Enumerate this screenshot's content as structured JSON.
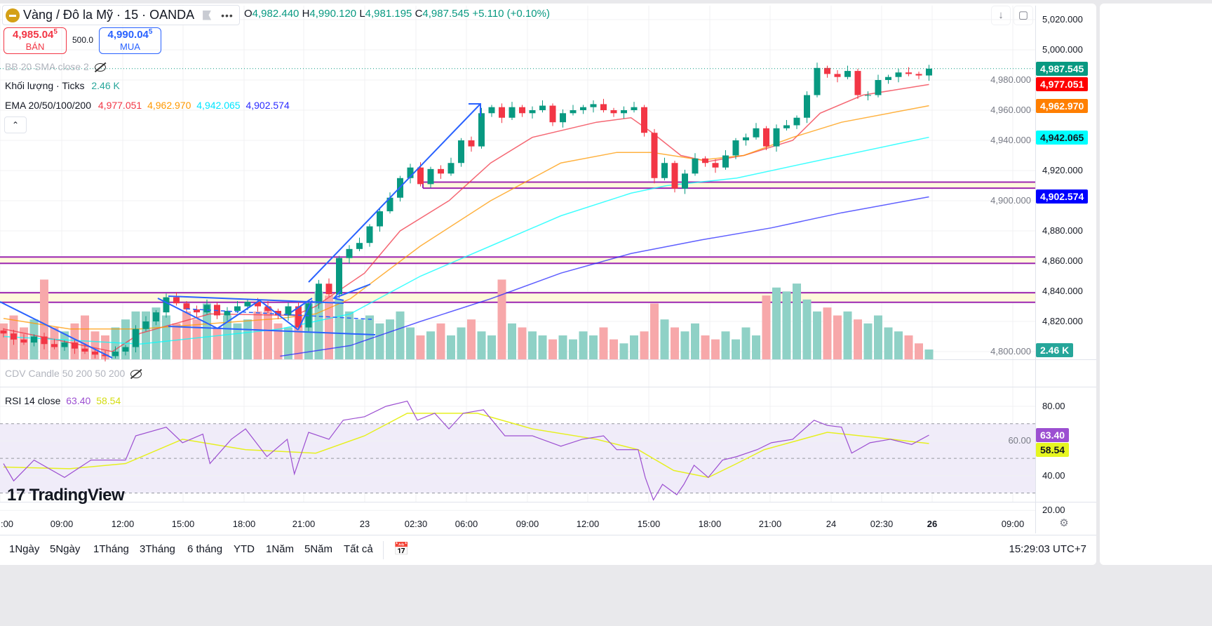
{
  "header": {
    "symbol_title": "Vàng / Đô la Mỹ · 15 · OANDA",
    "ohlc": {
      "o_label": "O",
      "o": "4,982.440",
      "h_label": "H",
      "h": "4,990.120",
      "l_label": "L",
      "l": "4,981.195",
      "c_label": "C",
      "c": "4,987.545",
      "change": "+5.110 (+0.10%)"
    },
    "sell": {
      "price": "4,985.04",
      "price_sup": "5",
      "label": "BÁN"
    },
    "buy": {
      "price": "4,990.04",
      "price_sup": "5",
      "label": "MUA"
    },
    "spread": "500.0"
  },
  "indicators": {
    "bb": "BB 20 SMA close 2",
    "volume_label": "Khối lượng · Ticks",
    "volume_value": "2.46 K",
    "ema_label": "EMA 20/50/100/200",
    "ema_values": [
      "4,977.051",
      "4,962.970",
      "4,942.065",
      "4,902.574"
    ],
    "cdv": "CDV Candle 50 200 50 200",
    "rsi_label": "RSI 14 close",
    "rsi_value": "63.40",
    "rsi_ma_value": "58.54"
  },
  "colors": {
    "up": "#089981",
    "down": "#f23645",
    "ema20": "#f23645",
    "ema50": "#ff9800",
    "ema100": "#00ffff",
    "ema200": "#2a2aff",
    "rsi": "#9c4fd1",
    "rsi_ma": "#e6f020",
    "zone_line": "#9c27b0",
    "zone_fill": "#fff9db",
    "drawing": "#2962ff"
  },
  "axis": {
    "price_ticks": [
      "5,020.000",
      "5,000.000",
      "4,980.000",
      "4,960.000",
      "4,940.000",
      "4,920.000",
      "4,900.000",
      "4,880.000",
      "4,860.000",
      "4,840.000",
      "4,820.000",
      "4,800.000"
    ],
    "rsi_ticks": [
      "80.00",
      "60.00",
      "40.00",
      "20.00"
    ],
    "time_ticks": [
      ":00",
      "09:00",
      "12:00",
      "15:00",
      "18:00",
      "21:00",
      "23",
      "02:30",
      "06:00",
      "09:00",
      "12:00",
      "15:00",
      "18:00",
      "21:00",
      "24",
      "02:30",
      "26",
      "09:00"
    ],
    "price_labels": [
      {
        "text": "4,987.545",
        "color": "#089981",
        "text_color": "#ffffff",
        "price": 4987.545
      },
      {
        "text": "4,977.051",
        "color": "#ff0000",
        "text_color": "#ffffff",
        "price": 4977.051
      },
      {
        "text": "4,962.970",
        "color": "#ff7f00",
        "text_color": "#ffffff",
        "price": 4962.97
      },
      {
        "text": "4,942.065",
        "color": "#00ffff",
        "text_color": "#131722",
        "price": 4942.065
      },
      {
        "text": "4,902.574",
        "color": "#0000ff",
        "text_color": "#ffffff",
        "price": 4902.574
      }
    ],
    "volume_label": "2.46 K",
    "rsi_labels": [
      {
        "text": "63.40",
        "color": "#9c4fd1",
        "text_color": "#ffffff",
        "value": 63.4
      },
      {
        "text": "58.54",
        "color": "#e6f620",
        "text_color": "#131722",
        "value": 58.54
      }
    ]
  },
  "chart_data": {
    "type": "candlestick",
    "symbol": "Vàng / Đô la Mỹ · 15 · OANDA",
    "ylim": [
      4795,
      5025
    ],
    "grid": true,
    "closes": [
      4812,
      4808,
      4806,
      4810,
      4805,
      4803,
      4806,
      4802,
      4800,
      4798,
      4797,
      4800,
      4803,
      4815,
      4820,
      4826,
      4836,
      4832,
      4828,
      4826,
      4831,
      4824,
      4827,
      4830,
      4833,
      4830,
      4827,
      4824,
      4830,
      4816,
      4832,
      4845,
      4838,
      4862,
      4868,
      4872,
      4883,
      4893,
      4902,
      4915,
      4922,
      4911,
      4921,
      4918,
      4925,
      4940,
      4936,
      4958,
      4962,
      4955,
      4962,
      4958,
      4960,
      4963,
      4952,
      4958,
      4960,
      4962,
      4964,
      4960,
      4958,
      4960,
      4962,
      4945,
      4915,
      4925,
      4908,
      4918,
      4928,
      4925,
      4922,
      4930,
      4940,
      4942,
      4948,
      4936,
      4948,
      4950,
      4955,
      4970,
      4988,
      4984,
      4982,
      4986,
      4970,
      4970,
      4980,
      4982,
      4985,
      4984,
      4983,
      4987.545
    ],
    "first_open": 4814,
    "volumes_k": [
      9,
      11,
      8,
      10,
      20,
      8,
      7,
      9,
      11,
      7,
      6,
      8,
      10,
      12,
      12,
      13,
      11,
      9,
      12,
      10,
      14,
      8,
      11,
      9,
      10,
      12,
      13,
      9,
      8,
      11,
      14,
      17,
      16,
      15,
      12,
      10,
      11,
      9,
      10,
      12,
      8,
      6,
      7,
      9,
      6,
      8,
      10,
      7,
      6,
      20,
      9,
      8,
      7,
      6,
      5,
      6,
      5,
      7,
      6,
      8,
      5,
      4,
      6,
      7,
      14,
      10,
      8,
      7,
      9,
      6,
      5,
      7,
      5,
      8,
      6,
      16,
      18,
      17,
      19,
      15,
      12,
      13,
      11,
      12,
      10,
      9,
      11,
      8,
      7,
      6,
      4,
      2.46
    ],
    "ema": [
      {
        "name": "EMA 20",
        "last": 4977.051,
        "knots": [
          [
            0,
            4815
          ],
          [
            6.5,
            4806
          ],
          [
            10.7,
            4800
          ],
          [
            13.4,
            4812
          ],
          [
            20.3,
            4825
          ],
          [
            28.6,
            4824
          ],
          [
            30.7,
            4830
          ],
          [
            35.5,
            4852
          ],
          [
            39,
            4880
          ],
          [
            43.8,
            4900
          ],
          [
            47.9,
            4925
          ],
          [
            52,
            4942
          ],
          [
            58.3,
            4952
          ],
          [
            61.7,
            4955
          ],
          [
            63.8,
            4945
          ],
          [
            66.6,
            4930
          ],
          [
            69.3,
            4926
          ],
          [
            72.8,
            4930
          ],
          [
            77.6,
            4940
          ],
          [
            80.3,
            4958
          ],
          [
            84.5,
            4970
          ],
          [
            91,
            4977.051
          ]
        ]
      },
      {
        "name": "EMA 50",
        "last": 4962.97,
        "knots": [
          [
            0,
            4822
          ],
          [
            6.5,
            4815
          ],
          [
            13.4,
            4815
          ],
          [
            27.2,
            4822
          ],
          [
            30.7,
            4825
          ],
          [
            34.1,
            4835
          ],
          [
            41,
            4870
          ],
          [
            47.9,
            4900
          ],
          [
            54.8,
            4925
          ],
          [
            60.3,
            4932
          ],
          [
            63.8,
            4932
          ],
          [
            68.6,
            4927
          ],
          [
            72.8,
            4930
          ],
          [
            77.6,
            4942
          ],
          [
            82.4,
            4952
          ],
          [
            91,
            4962.97
          ]
        ]
      },
      {
        "name": "EMA 100",
        "last": 4942.065,
        "knots": [
          [
            0,
            4810
          ],
          [
            13.4,
            4805
          ],
          [
            27.2,
            4815
          ],
          [
            34.1,
            4825
          ],
          [
            41,
            4850
          ],
          [
            47.9,
            4870
          ],
          [
            54.8,
            4890
          ],
          [
            61.7,
            4905
          ],
          [
            65.2,
            4910
          ],
          [
            72.1,
            4915
          ],
          [
            79,
            4925
          ],
          [
            91,
            4942.065
          ]
        ]
      },
      {
        "name": "EMA 200",
        "last": 4902.574,
        "knots": [
          [
            27.2,
            4797
          ],
          [
            34.1,
            4804
          ],
          [
            41,
            4820
          ],
          [
            47.9,
            4835
          ],
          [
            54.8,
            4852
          ],
          [
            61.7,
            4865
          ],
          [
            68.6,
            4874
          ],
          [
            75.5,
            4882
          ],
          [
            82.4,
            4892
          ],
          [
            91,
            4902.574
          ]
        ]
      }
    ],
    "zones": [
      [
        4908.3,
        4912.3
      ],
      [
        4858.5,
        4862.7
      ],
      [
        4832.7,
        4839
      ]
    ],
    "rsi": {
      "ylim": [
        20,
        85
      ],
      "bands": [
        30,
        50,
        70
      ],
      "values": [
        [
          0,
          47
        ],
        [
          1,
          37
        ],
        [
          3,
          49
        ],
        [
          6,
          39
        ],
        [
          8.6,
          49
        ],
        [
          12,
          49
        ],
        [
          13,
          63
        ],
        [
          16,
          68
        ],
        [
          17.6,
          59
        ],
        [
          19.6,
          64
        ],
        [
          20.3,
          47
        ],
        [
          22.4,
          61
        ],
        [
          23.8,
          67
        ],
        [
          25.9,
          51
        ],
        [
          27.9,
          61
        ],
        [
          28.6,
          41
        ],
        [
          30,
          65
        ],
        [
          32,
          61
        ],
        [
          33.4,
          72
        ],
        [
          35.5,
          74
        ],
        [
          37.6,
          80
        ],
        [
          39.7,
          83
        ],
        [
          40.7,
          72
        ],
        [
          42.4,
          76
        ],
        [
          43.8,
          67
        ],
        [
          45.2,
          76
        ],
        [
          47.2,
          78
        ],
        [
          49.3,
          63
        ],
        [
          52,
          63
        ],
        [
          54.8,
          57
        ],
        [
          56.9,
          61
        ],
        [
          59,
          63
        ],
        [
          60.3,
          55
        ],
        [
          62.4,
          55
        ],
        [
          63.1,
          39
        ],
        [
          63.9,
          26
        ],
        [
          64.8,
          35
        ],
        [
          66.2,
          29
        ],
        [
          66.9,
          35
        ],
        [
          67.9,
          46
        ],
        [
          69.3,
          39
        ],
        [
          70.7,
          49
        ],
        [
          72.1,
          51
        ],
        [
          74.1,
          55
        ],
        [
          75.5,
          59
        ],
        [
          77.6,
          61
        ],
        [
          79.7,
          72
        ],
        [
          81,
          69
        ],
        [
          82.4,
          68
        ],
        [
          83.4,
          53
        ],
        [
          85.2,
          59
        ],
        [
          87.2,
          61
        ],
        [
          89.3,
          58
        ],
        [
          91,
          63.4
        ]
      ],
      "ma": [
        [
          0,
          45
        ],
        [
          6.5,
          44
        ],
        [
          12,
          47
        ],
        [
          17.6,
          61
        ],
        [
          23.8,
          55
        ],
        [
          30.7,
          53
        ],
        [
          35.5,
          63
        ],
        [
          39.7,
          76
        ],
        [
          46.6,
          76
        ],
        [
          52,
          67
        ],
        [
          58.3,
          61
        ],
        [
          62.4,
          55
        ],
        [
          65.9,
          43
        ],
        [
          69.3,
          39
        ],
        [
          72.1,
          47
        ],
        [
          74.8,
          55
        ],
        [
          81,
          65
        ],
        [
          85.9,
          62
        ],
        [
          91,
          58.54
        ]
      ]
    }
  },
  "bottom": {
    "ranges": [
      "1Ngày",
      "5Ngày",
      "1Tháng",
      "3Tháng",
      "6 tháng",
      "YTD",
      "1Năm",
      "5Năm",
      "Tất cả"
    ],
    "clock": "15:29:03 UTC+7"
  },
  "branding": {
    "logo_text": "TradingView"
  }
}
